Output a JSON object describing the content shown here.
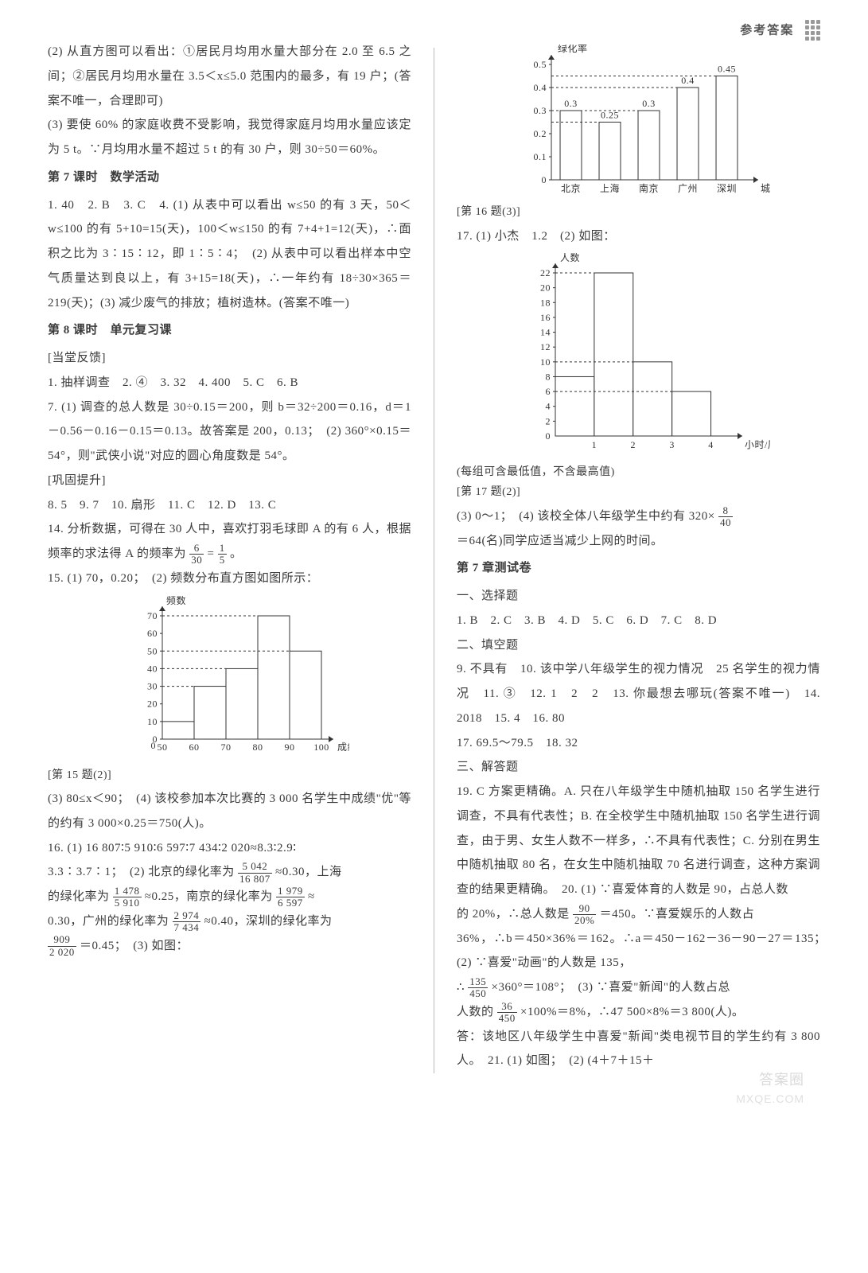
{
  "header": {
    "title": "参考答案"
  },
  "left": {
    "p2": "(2) 从直方图可以看出：①居民月均用水量大部分在 2.0 至 6.5 之间；②居民月均用水量在 3.5＜x≤5.0 范围内的最多，有 19 户；(答案不唯一，合理即可)",
    "p3": "(3) 要使 60% 的家庭收费不受影响，我觉得家庭月均用水量应该定为 5 t。∵月均用水量不超过 5 t 的有 30 户，则 30÷50＝60%。",
    "h7": "第 7 课时　数学活动",
    "q7": "1. 40　2. B　3. C　4. (1) 从表中可以看出 w≤50 的有 3 天，50＜w≤100 的有 5+10=15(天)，100＜w≤150 的有 7+4+1=12(天)，∴面积之比为 3∶15∶12，即 1∶5∶4；　(2) 从表中可以看出样本中空气质量达到良以上，有 3+15=18(天)，∴一年约有 18÷30×365＝219(天)；(3) 减少废气的排放；植树造林。(答案不唯一)",
    "h8": "第 8 课时　单元复习课",
    "sub1": "[当堂反馈]",
    "q8a": "1. 抽样调查　2. ④　3. 32　4. 400　5. C　6. B",
    "q8b": "7. (1) 调查的总人数是 30÷0.15＝200，则 b＝32÷200＝0.16，d＝1－0.56－0.16－0.15＝0.13。故答案是 200，0.13；　(2) 360°×0.15＝54°，则\"武侠小说\"对应的圆心角度数是 54°。",
    "sub2": "[巩固提升]",
    "q8c": "8. 5　9. 7　10. 扇形　11. C　12. D　13. C",
    "q8d_pre": "14. 分析数据，可得在 30 人中，喜欢打羽毛球即 A 的有 6 人，根据频率的求法得 A 的频率为 ",
    "q8d_f1n": "6",
    "q8d_f1d": "30",
    "q8d_mid": " = ",
    "q8d_f2n": "1",
    "q8d_f2d": "5",
    "q8d_post": "。",
    "q15": "15. (1) 70，0.20；　(2) 频数分布直方图如图所示：",
    "chart15": {
      "type": "histogram",
      "x_label": "成绩/分",
      "y_label": "频数",
      "x_ticks": [
        50,
        60,
        70,
        80,
        90,
        100
      ],
      "y_ticks": [
        0,
        10,
        20,
        30,
        40,
        50,
        60,
        70
      ],
      "bars": [
        {
          "x": 50,
          "h": 10
        },
        {
          "x": 60,
          "h": 30
        },
        {
          "x": 70,
          "h": 40
        },
        {
          "x": 80,
          "h": 70
        },
        {
          "x": 90,
          "h": 50
        }
      ],
      "axis_color": "#333",
      "fill": "#ffffff",
      "stroke": "#333",
      "label_fontsize": 12
    },
    "cap15": "[第 15 题(2)]",
    "q15b": "(3) 80≤x＜90；　(4) 该校参加本次比赛的 3 000 名学生中成绩\"优\"等的约有 3 000×0.25＝750(人)。",
    "q16a": "16. (1) 16 807∶5 910∶6 597∶7 434∶2 020≈8.3∶2.9∶",
    "q16a2_pre": "3.3∶3.7∶1；　(2) 北京的绿化率为 ",
    "f_bj_n": "5 042",
    "f_bj_d": "16 807",
    "q16a2_post": " ≈0.30，上海",
    "q16b_pre": "的绿化率为 ",
    "f_sh_n": "1 478",
    "f_sh_d": "5 910",
    "q16b_mid": " ≈0.25，南京的绿化率为 ",
    "f_nj_n": "1 979",
    "f_nj_d": "6 597",
    "q16b_post": " ≈",
    "q16c_pre": "0.30，广州的绿化率为 ",
    "f_gz_n": "2 974",
    "f_gz_d": "7 434",
    "q16c_post": " ≈0.40，深圳的绿化率为",
    "q16d_pre": "",
    "f_sz_n": "909",
    "f_sz_d": "2 020",
    "q16d_post": " ＝0.45；　(3) 如图："
  },
  "right": {
    "chart16": {
      "type": "bar",
      "y_label": "绿化率",
      "x_label": "城市",
      "categories": [
        "北京",
        "上海",
        "南京",
        "广州",
        "深圳"
      ],
      "values": [
        0.3,
        0.25,
        0.3,
        0.4,
        0.45
      ],
      "labels": [
        "0.3",
        "0.25",
        "0.3",
        "0.4",
        "0.45"
      ],
      "y_ticks": [
        0,
        0.1,
        0.2,
        0.3,
        0.4,
        0.5
      ],
      "axis_color": "#333",
      "fill": "#fff",
      "stroke": "#333",
      "label_fontsize": 12,
      "bar_width": 0.55
    },
    "cap16": "[第 16 题(3)]",
    "q17": "17. (1) 小杰　1.2　(2) 如图：",
    "chart17": {
      "type": "histogram",
      "y_label": "人数",
      "x_label": "小时/周",
      "x_ticks": [
        0,
        1,
        2,
        3,
        4
      ],
      "y_ticks": [
        0,
        2,
        4,
        6,
        8,
        10,
        12,
        14,
        16,
        18,
        20,
        22
      ],
      "bars": [
        {
          "x": 0,
          "h": 8
        },
        {
          "x": 1,
          "h": 22
        },
        {
          "x": 2,
          "h": 10
        },
        {
          "x": 3,
          "h": 6
        }
      ],
      "axis_color": "#333",
      "fill": "#fff",
      "stroke": "#333",
      "label_fontsize": 12
    },
    "cap17a": "(每组可含最低值，不含最高值)",
    "cap17b": "[第 17 题(2)]",
    "q17b_pre": "(3) 0～1；　(4) 该校全体八年级学生中约有 320×",
    "f17_n": "8",
    "f17_d": "40",
    "q17c": "＝64(名)同学应适当减少上网的时间。",
    "h7c": "第 7 章测试卷",
    "s1": "一、选择题",
    "a1": "1. B　2. C　3. B　4. D　5. C　6. D　7. C　8. D",
    "s2": "二、填空题",
    "a2": "9. 不具有　10. 该中学八年级学生的视力情况　25 名学生的视力情况　11. ③　12. 1　2　2　13. 你最想去哪玩(答案不唯一)　14. 2018　15. 4　16. 80",
    "a2b": "17. 69.5～79.5　18. 32",
    "s3": "三、解答题",
    "a19": "19. C 方案更精确。A. 只在八年级学生中随机抽取 150 名学生进行调查，不具有代表性；B. 在全校学生中随机抽取 150 名学生进行调查，由于男、女生人数不一样多，∴不具有代表性；C. 分别在男生中随机抽取 80 名，在女生中随机抽取 70 名进行调查，这种方案调查的结果更精确。　20. (1) ∵喜爱体育的人数是 90，占总人数",
    "a20a_pre": "的 20%，∴总人数是 ",
    "f20a_n": "90",
    "f20a_d": "20%",
    "a20a_post": " ＝450。∵喜爱娱乐的人数占",
    "a20b": "36%，∴b＝450×36%＝162。∴a＝450－162－36－90－27＝135；　(2) ∵喜爱\"动画\"的人数是 135，",
    "a20c_pre": "∴",
    "f20c_n": "135",
    "f20c_d": "450",
    "a20c_post": "×360°＝108°；　(3) ∵喜爱\"新闻\"的人数占总",
    "a20d_pre": "人数的 ",
    "f20d_n": "36",
    "f20d_d": "450",
    "a20d_post": "×100%＝8%，∴47 500×8%＝3 800(人)。",
    "a20e": "答：该地区八年级学生中喜爱\"新闻\"类电视节目的学生约有 3 800 人。　21. (1) 如图；　(2) (4＋7＋15＋"
  },
  "watermark": "答案圈",
  "watermark2": "MXQE.COM"
}
